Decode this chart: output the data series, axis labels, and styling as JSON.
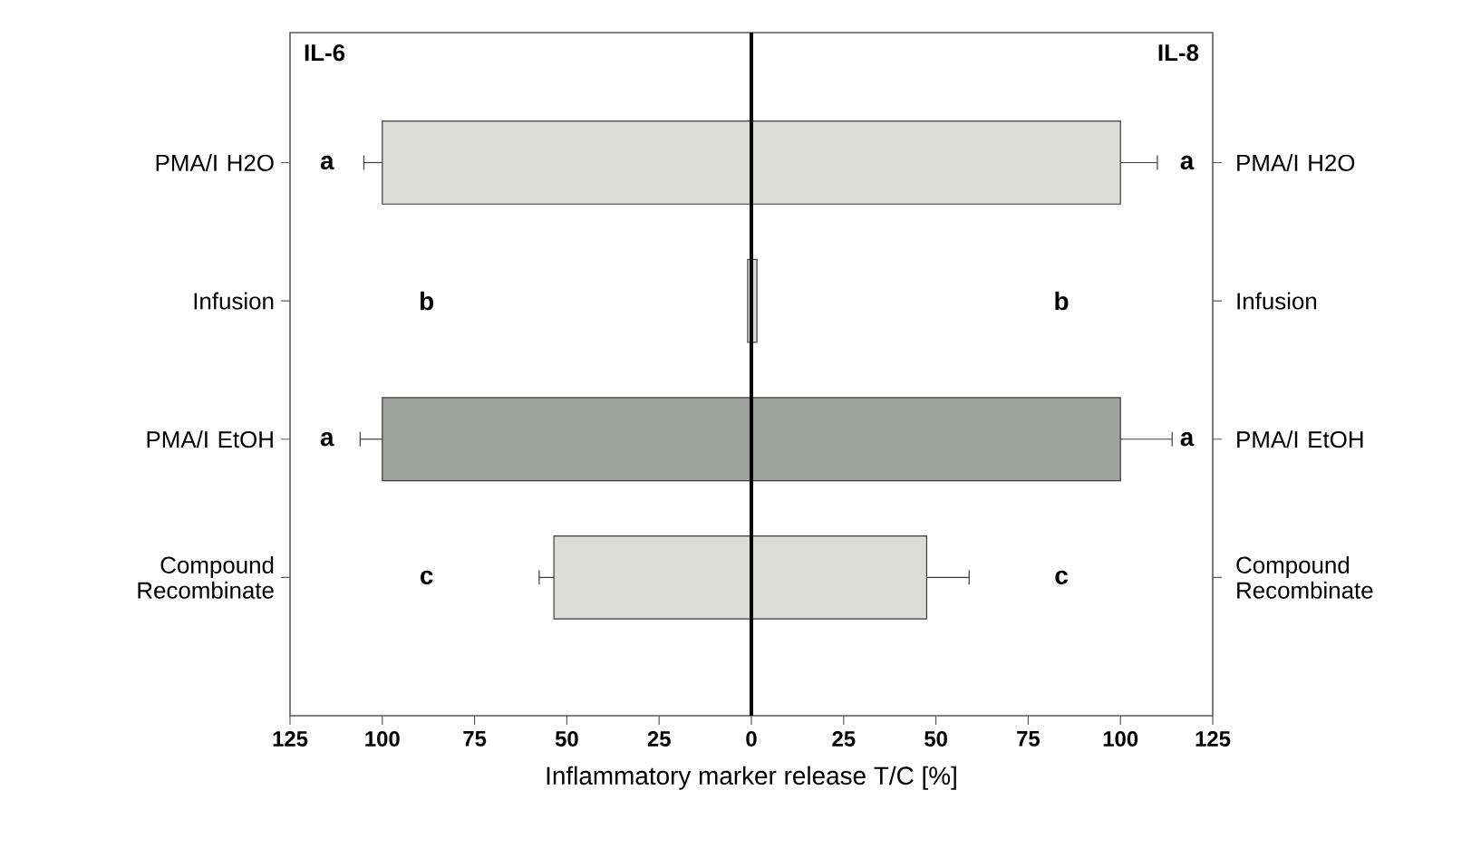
{
  "chart_data": {
    "type": "bar",
    "orientation": "horizontal",
    "stacked": true,
    "xlabel": "Inflammatory marker release T/C [%]",
    "categories": [
      "PMA/I H2O",
      "Infusion",
      "PMA/I EtOH",
      "Compound Recombinate"
    ],
    "series": [
      {
        "colors": [
          "#dcdcd8",
          "#dcdcd8",
          "#a0a29f",
          "#dcdcd8"
        ],
        "values": [
          -100,
          -1,
          -100,
          -53.5
        ],
        "errors": [
          [
            -105,
            -100
          ],
          null,
          [
            -106,
            -100
          ],
          [
            -57.5,
            -53.5
          ]
        ]
      },
      {
        "colors": [
          "#dcdcd8",
          "#dcdcd8",
          "#a0a29f",
          "#dcdcd8"
        ],
        "values": [
          100,
          1.5,
          100,
          47.5
        ],
        "errors": [
          [
            100,
            110
          ],
          null,
          [
            100,
            114
          ],
          [
            47.5,
            59
          ]
        ]
      }
    ],
    "xlim": [
      -125,
      125
    ],
    "xticks": [
      {
        "value": -125,
        "label": "125"
      },
      {
        "value": -100,
        "label": "100"
      },
      {
        "value": -75,
        "label": "75"
      },
      {
        "value": -50,
        "label": "50"
      },
      {
        "value": -25,
        "label": "25"
      },
      0,
      25,
      50,
      75,
      100,
      125
    ],
    "ref_lines": [
      {
        "axis": "x",
        "value": 0,
        "color": "#000000"
      }
    ],
    "annotations": [
      "IL-6",
      "IL-8",
      "a",
      "b",
      "a",
      "c",
      "a",
      "b",
      "a",
      "c"
    ]
  }
}
